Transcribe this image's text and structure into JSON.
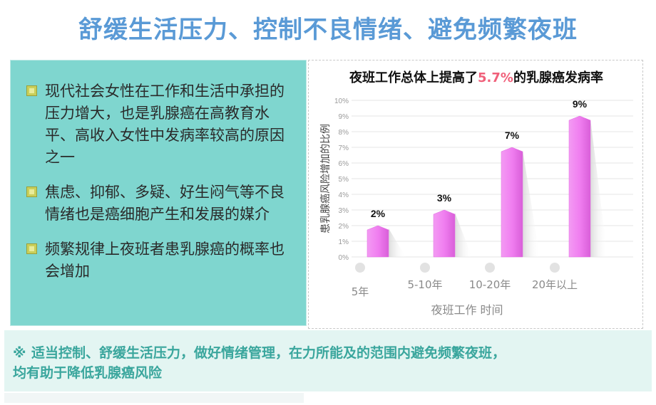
{
  "header": {
    "title": "舒缓生活压力、控制不良情绪、避免频繁夜班"
  },
  "left_panel": {
    "bullets": [
      "现代社会女性在工作和生活中承担的压力增大，也是乳腺癌在高教育水平、高收入女性中发病率较高的原因之一",
      "焦虑、抑郁、多疑、好生闷气等不良情绪也是癌细胞产生和发展的媒介",
      "频繁规律上夜班者患乳腺癌的概率也会增加"
    ]
  },
  "bottom": {
    "symbol": "※",
    "line1": "适当控制、舒缓生活压力，做好情绪管理，在力所能及的范围内避免频繁夜班，",
    "line2": "均有助于降低乳腺癌风险"
  },
  "chart_data": {
    "type": "bar",
    "title_prefix": "夜班工作总体上提高了",
    "title_highlight": "5.7%",
    "title_suffix": "的乳腺癌发病率",
    "categories": [
      "5年",
      "5-10年",
      "10-20年",
      "20年以上"
    ],
    "values": [
      2,
      3,
      7,
      9
    ],
    "value_labels": [
      "2%",
      "3%",
      "7%",
      "9%"
    ],
    "ylabel": "患乳腺癌风险增加的比例",
    "xlabel": "夜班工作 时间",
    "ylim": [
      0,
      10
    ],
    "yticks": [
      "0%",
      "1%",
      "2%",
      "3%",
      "4%",
      "5%",
      "6%",
      "7%",
      "8%",
      "9%",
      "10%"
    ],
    "bar_color": "#f07ef0",
    "grid": true
  }
}
